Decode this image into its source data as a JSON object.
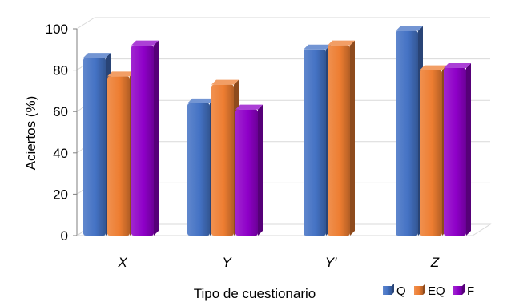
{
  "colors": {
    "Q": "#4472C4",
    "EQ": "#ED7D31",
    "F": "#8F00C8"
  },
  "chart_data": {
    "type": "bar",
    "categories": [
      "X",
      "Y",
      "Y′",
      "Z"
    ],
    "series": [
      {
        "name": "Q",
        "values": [
          86,
          64,
          90,
          99
        ],
        "color": "#4472C4"
      },
      {
        "name": "EQ",
        "values": [
          77,
          73,
          92,
          80
        ],
        "color": "#ED7D31"
      },
      {
        "name": "F",
        "values": [
          92,
          61,
          null,
          81
        ],
        "color": "#8F00C8"
      }
    ],
    "xlabel": "Tipo de cuestionario",
    "ylabel": "Aciertos (%)",
    "ylim": [
      0,
      100
    ],
    "yticks": [
      0,
      20,
      40,
      60,
      80,
      100
    ],
    "grid": true,
    "legend": "bottom-right",
    "style": "3d-clustered-column"
  }
}
